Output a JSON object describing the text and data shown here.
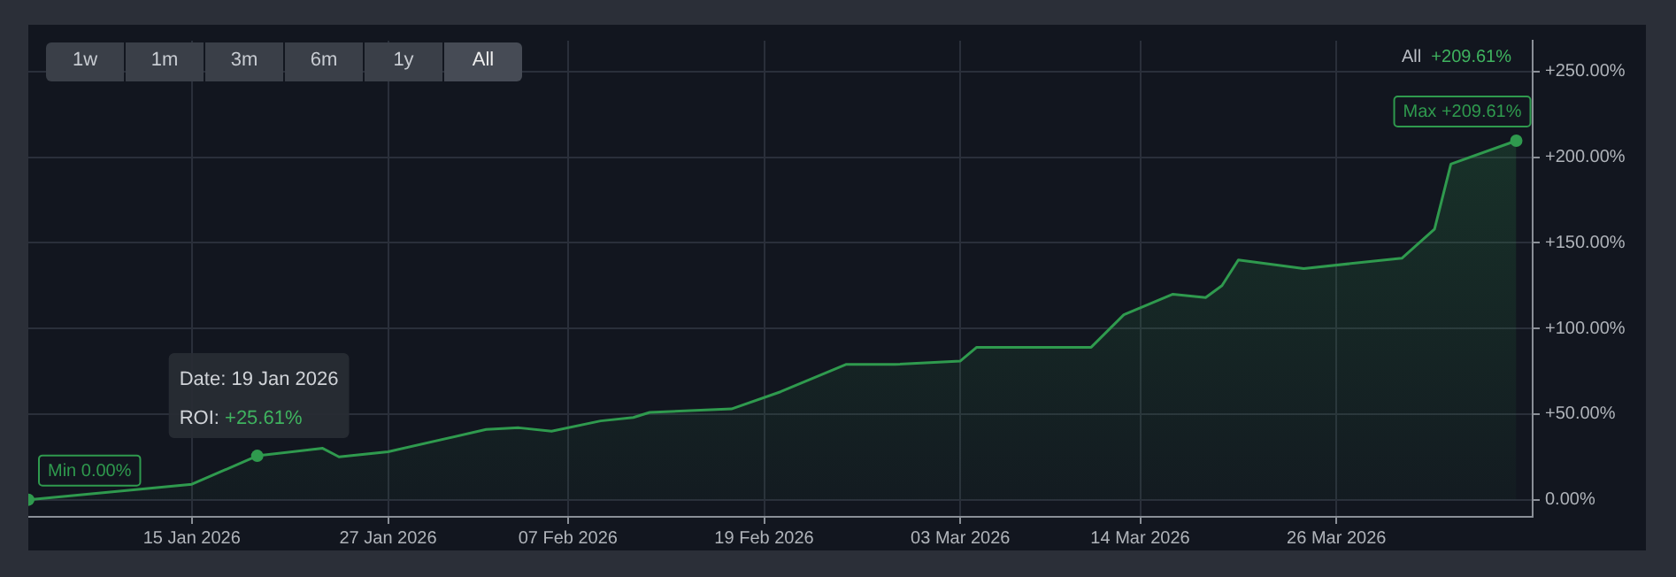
{
  "chart_data": {
    "type": "area",
    "x": [
      "2026-01-05",
      "2026-01-15",
      "2026-01-19",
      "2026-01-23",
      "2026-01-24",
      "2026-01-27",
      "2026-02-02",
      "2026-02-04",
      "2026-02-06",
      "2026-02-09",
      "2026-02-11",
      "2026-02-12",
      "2026-02-17",
      "2026-02-20",
      "2026-02-24",
      "2026-02-27",
      "2026-03-03",
      "2026-03-04",
      "2026-03-11",
      "2026-03-13",
      "2026-03-16",
      "2026-03-18",
      "2026-03-19",
      "2026-03-20",
      "2026-03-24",
      "2026-03-30",
      "2026-04-01",
      "2026-04-02",
      "2026-04-06"
    ],
    "series": [
      {
        "color": "#2f9a4e",
        "values": [
          0,
          9,
          25.61,
          30,
          25,
          28,
          41,
          42,
          40,
          46,
          48,
          51,
          53,
          63,
          79,
          79,
          81,
          89,
          89,
          108,
          120,
          118,
          125,
          140,
          135,
          141,
          158,
          196,
          209.61
        ]
      }
    ],
    "xlim": [
      "2026-01-05",
      "2026-04-07"
    ],
    "xticks": [
      {
        "value": "2026-01-15",
        "label": "15 Jan 2026"
      },
      {
        "value": "2026-01-27",
        "label": "27 Jan 2026"
      },
      {
        "value": "2026-02-07",
        "label": "07 Feb 2026"
      },
      {
        "value": "2026-02-19",
        "label": "19 Feb 2026"
      },
      {
        "value": "2026-03-03",
        "label": "03 Mar 2026"
      },
      {
        "value": "2026-03-14",
        "label": "14 Mar 2026"
      },
      {
        "value": "2026-03-26",
        "label": "26 Mar 2026"
      }
    ],
    "ylim": [
      -10,
      268
    ],
    "yticks": [
      {
        "value": 0,
        "label": "0.00%"
      },
      {
        "value": 50,
        "label": "+50.00%"
      },
      {
        "value": 100,
        "label": "+100.00%"
      },
      {
        "value": 150,
        "label": "+150.00%"
      },
      {
        "value": 200,
        "label": "+200.00%"
      },
      {
        "value": 250,
        "label": "+250.00%"
      }
    ],
    "grid": true,
    "legend": false,
    "marker": "none",
    "line_style": "solid",
    "annotations": [
      "1w",
      "1m",
      "3m",
      "6m",
      "1y",
      "All",
      "All +209.61%",
      {
        "text": "Min 0.00%",
        "x": "2026-01-05",
        "y": 0
      },
      {
        "text": "Date: 19 Jan 2026\nROI: +25.61%",
        "x": "2026-01-19",
        "y": 25.61
      },
      {
        "text": "Max +209.61%",
        "x": "2026-04-06",
        "y": 209.61
      }
    ]
  }
}
